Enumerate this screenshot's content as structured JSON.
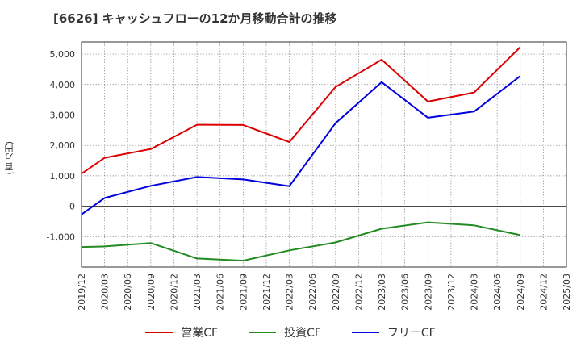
{
  "chart_data": {
    "type": "line",
    "title": "[6626]  キャッシュフローの12か月移動合計の推移",
    "ylabel": "(百万円)",
    "xlabel": "",
    "x": [
      "2019/12",
      "2020/03",
      "2020/06",
      "2020/09",
      "2020/12",
      "2021/03",
      "2021/06",
      "2021/09",
      "2021/12",
      "2022/03",
      "2022/06",
      "2022/09",
      "2022/12",
      "2023/03",
      "2023/06",
      "2023/09",
      "2023/12",
      "2024/03",
      "2024/06",
      "2024/09",
      "2024/12",
      "2025/03"
    ],
    "ylim": [
      -2000,
      5400
    ],
    "yticks": [
      -1000,
      0,
      1000,
      2000,
      3000,
      4000,
      5000
    ],
    "ytick_labels": [
      "-1,000",
      "0",
      "1,000",
      "2,000",
      "3,000",
      "4,000",
      "5,000"
    ],
    "grid": true,
    "legend_position": "bottom",
    "series": [
      {
        "name": "営業CF",
        "color": "#dd0000",
        "points": [
          [
            "2019/12",
            1070
          ],
          [
            "2020/03",
            1590
          ],
          [
            "2020/09",
            1880
          ],
          [
            "2021/03",
            2680
          ],
          [
            "2021/09",
            2670
          ],
          [
            "2022/03",
            2110
          ],
          [
            "2022/09",
            3920
          ],
          [
            "2023/03",
            4820
          ],
          [
            "2023/09",
            3440
          ],
          [
            "2024/03",
            3740
          ],
          [
            "2024/09",
            5230
          ]
        ]
      },
      {
        "name": "投資CF",
        "color": "#228b22",
        "points": [
          [
            "2019/12",
            -1340
          ],
          [
            "2020/03",
            -1320
          ],
          [
            "2020/09",
            -1210
          ],
          [
            "2021/03",
            -1720
          ],
          [
            "2021/09",
            -1790
          ],
          [
            "2022/03",
            -1450
          ],
          [
            "2022/09",
            -1190
          ],
          [
            "2023/03",
            -740
          ],
          [
            "2023/09",
            -530
          ],
          [
            "2024/03",
            -630
          ],
          [
            "2024/09",
            -950
          ]
        ]
      },
      {
        "name": "フリーCF",
        "color": "#0000dd",
        "points": [
          [
            "2019/12",
            -270
          ],
          [
            "2020/03",
            270
          ],
          [
            "2020/09",
            670
          ],
          [
            "2021/03",
            960
          ],
          [
            "2021/09",
            880
          ],
          [
            "2022/03",
            660
          ],
          [
            "2022/09",
            2730
          ],
          [
            "2023/03",
            4080
          ],
          [
            "2023/09",
            2910
          ],
          [
            "2024/03",
            3110
          ],
          [
            "2024/09",
            4280
          ]
        ]
      }
    ]
  }
}
